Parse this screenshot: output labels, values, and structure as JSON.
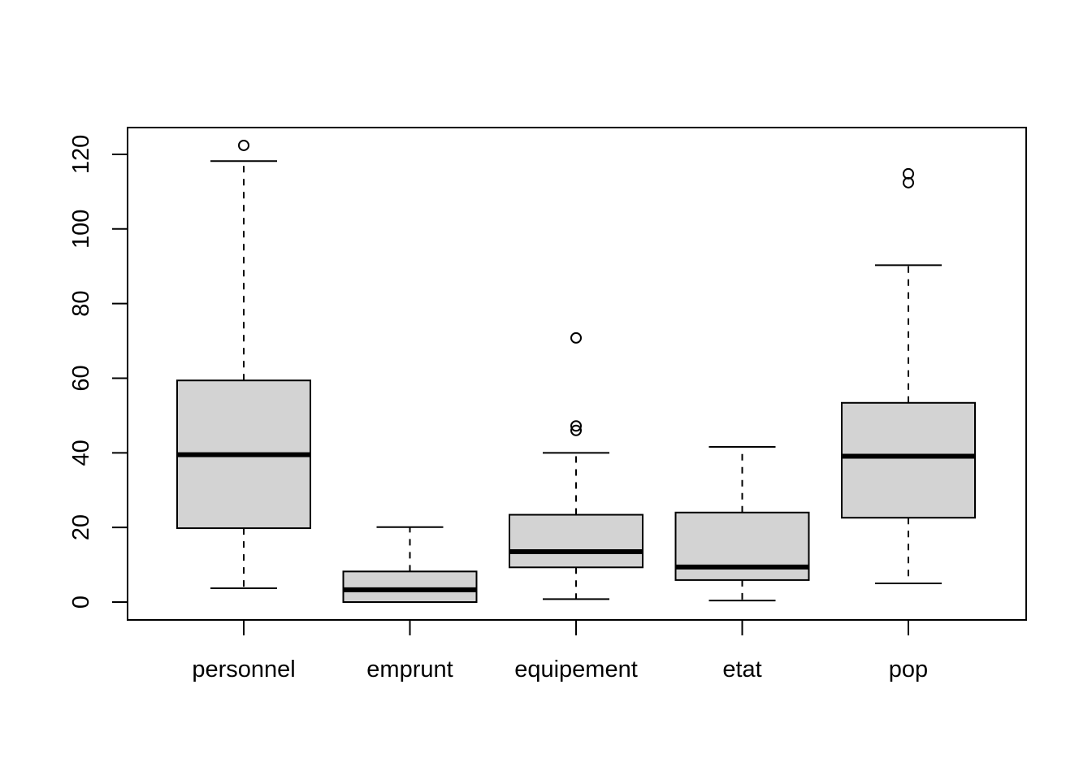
{
  "chart_data": {
    "type": "boxplot",
    "title": "",
    "xlabel": "",
    "ylabel": "",
    "ylim": [
      -5,
      127
    ],
    "yticks": [
      0,
      20,
      40,
      60,
      80,
      100,
      120
    ],
    "categories": [
      "personnel",
      "emprunt",
      "equipement",
      "etat",
      "pop"
    ],
    "boxes": [
      {
        "name": "personnel",
        "whisker_low": 3.7,
        "q1": 19.8,
        "median": 39.5,
        "q3": 59.4,
        "whisker_high": 118.2,
        "outliers": [
          122.4
        ]
      },
      {
        "name": "emprunt",
        "whisker_low": 0.0,
        "q1": 0.0,
        "median": 3.3,
        "q3": 8.2,
        "whisker_high": 20.1,
        "outliers": []
      },
      {
        "name": "equipement",
        "whisker_low": 0.8,
        "q1": 9.3,
        "median": 13.5,
        "q3": 23.4,
        "whisker_high": 40.0,
        "outliers": [
          46.0,
          47.2,
          70.8
        ]
      },
      {
        "name": "etat",
        "whisker_low": 0.4,
        "q1": 5.9,
        "median": 9.4,
        "q3": 24.0,
        "whisker_high": 41.6,
        "outliers": []
      },
      {
        "name": "pop",
        "whisker_low": 5.0,
        "q1": 22.6,
        "median": 39.1,
        "q3": 53.4,
        "whisker_high": 90.3,
        "outliers": [
          112.4,
          114.8
        ]
      }
    ],
    "colors": {
      "box_fill": "#d3d3d3",
      "stroke": "#000000"
    },
    "grid": false,
    "legend": "none"
  }
}
